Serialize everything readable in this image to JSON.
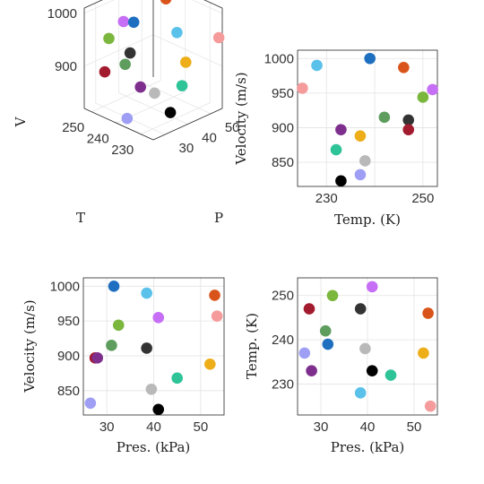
{
  "colors": [
    "#f7c242",
    "#ababab",
    "#8ae0d2",
    "#32cd32",
    "#00bcd4",
    "#e05a6a",
    "#7fb8ff",
    "#9c27b0",
    "#a9a9a9",
    "#d50000"
  ],
  "chart_data": [
    {
      "id": "panel-3d",
      "type": "scatter3d",
      "xlabel": "P",
      "ylabel": "T",
      "zlabel": "V",
      "x_ticks": [
        "30",
        "40",
        "50"
      ],
      "y_ticks": [
        "230",
        "240",
        "250"
      ],
      "z_ticks": [
        "900",
        "1000"
      ],
      "xlim": [
        25,
        55
      ],
      "ylim": [
        225,
        253
      ],
      "zlim": [
        820,
        1010
      ],
      "grid": true
    },
    {
      "id": "panel-temp-velocity",
      "type": "scatter",
      "xlabel": "Temp. (K)",
      "ylabel": "Velocity (m/s)",
      "x_ticks": [
        "230",
        "250"
      ],
      "y_ticks": [
        "850",
        "900",
        "950",
        "1000"
      ],
      "xlim": [
        224,
        253
      ],
      "ylim": [
        815,
        1012
      ],
      "grid": true
    },
    {
      "id": "panel-pres-velocity",
      "type": "scatter",
      "xlabel": "Pres. (kPa)",
      "ylabel": "Velocity (m/s)",
      "x_ticks": [
        "30",
        "40",
        "50"
      ],
      "y_ticks": [
        "850",
        "900",
        "950",
        "1000"
      ],
      "xlim": [
        25,
        55
      ],
      "ylim": [
        815,
        1012
      ],
      "grid": true
    },
    {
      "id": "panel-pres-temp",
      "type": "scatter",
      "xlabel": "Pres. (kPa)",
      "ylabel": "Temp. (K)",
      "x_ticks": [
        "30",
        "40",
        "50"
      ],
      "y_ticks": [
        "230",
        "240",
        "250"
      ],
      "xlim": [
        25,
        55
      ],
      "ylim": [
        223,
        254
      ],
      "grid": true
    }
  ],
  "points": [
    {
      "color": "#1f6fc1",
      "P": 31.5,
      "T": 239,
      "V": 1000
    },
    {
      "color": "#59c1ea",
      "P": 38.5,
      "T": 228,
      "V": 990
    },
    {
      "color": "#d9541a",
      "P": 53.0,
      "T": 246,
      "V": 987
    },
    {
      "color": "#f59b9b",
      "P": 53.5,
      "T": 225,
      "V": 957
    },
    {
      "color": "#c66ef5",
      "P": 41.0,
      "T": 252,
      "V": 955
    },
    {
      "color": "#7bb63d",
      "P": 32.5,
      "T": 250,
      "V": 944
    },
    {
      "color": "#5e9d5e",
      "P": 31.0,
      "T": 242,
      "V": 915
    },
    {
      "color": "#333333",
      "P": 38.5,
      "T": 247,
      "V": 911
    },
    {
      "color": "#a31b2e",
      "P": 27.5,
      "T": 247,
      "V": 897
    },
    {
      "color": "#7e2f8e",
      "P": 28.0,
      "T": 233,
      "V": 897
    },
    {
      "color": "#eeae1a",
      "P": 52.0,
      "T": 237,
      "V": 888
    },
    {
      "color": "#2fc398",
      "P": 45.0,
      "T": 232,
      "V": 868
    },
    {
      "color": "#b9b9b9",
      "P": 39.5,
      "T": 238,
      "V": 852
    },
    {
      "color": "#9e9ef5",
      "P": 26.5,
      "T": 237,
      "V": 832
    },
    {
      "color": "#000000",
      "P": 41.0,
      "T": 233,
      "V": 823
    }
  ]
}
